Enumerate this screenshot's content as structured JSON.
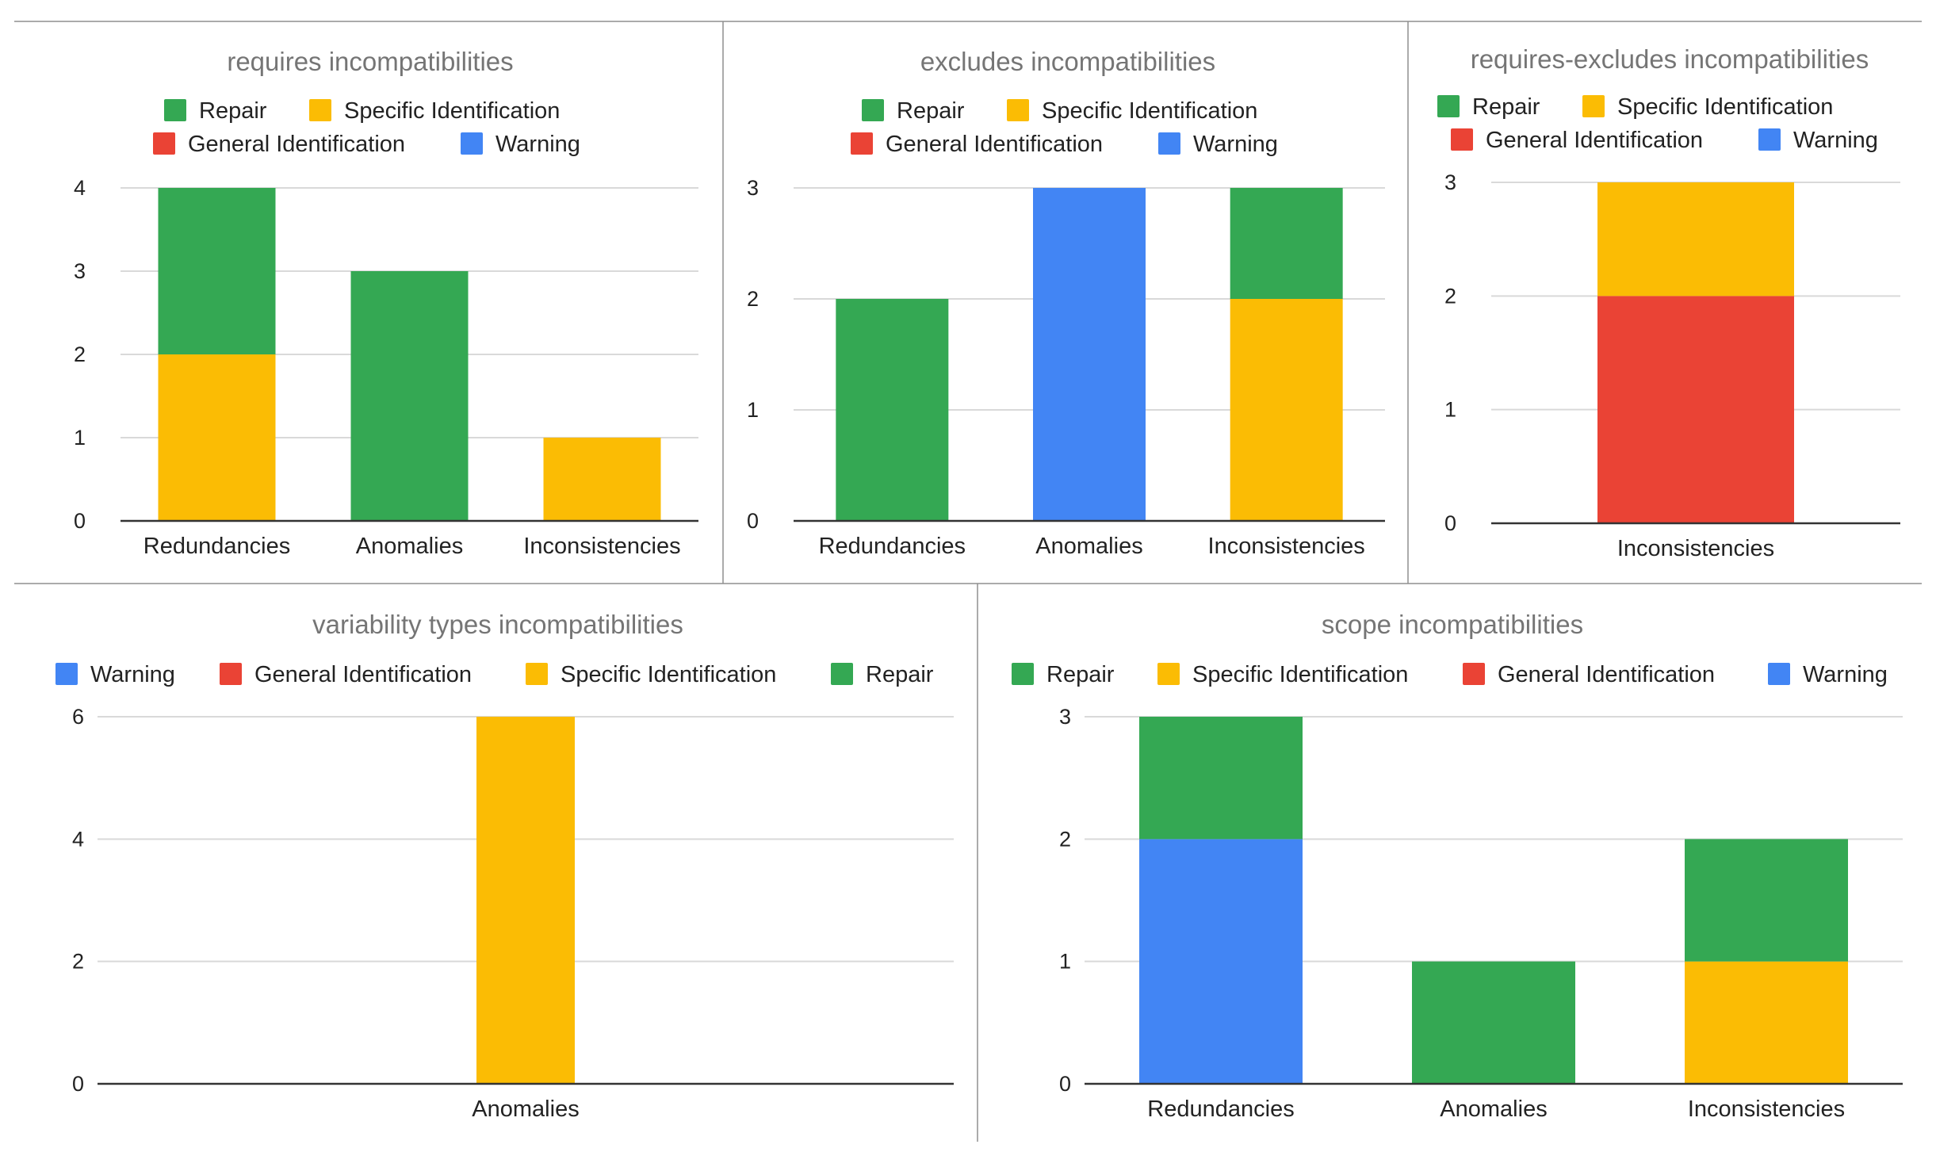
{
  "colors": {
    "Repair": "#34A853",
    "Specific Identification": "#FBBC04",
    "General Identification": "#EA4335",
    "Warning": "#4285F4"
  },
  "chart_data": [
    {
      "type": "bar",
      "stacked": true,
      "title": "requires incompatibilities",
      "legend": [
        "Repair",
        "Specific Identification",
        "General Identification",
        "Warning"
      ],
      "categories": [
        "Redundancies",
        "Anomalies",
        "Inconsistencies"
      ],
      "series": [
        {
          "name": "Specific Identification",
          "values": [
            2,
            0,
            1
          ]
        },
        {
          "name": "Repair",
          "values": [
            2,
            3,
            0
          ]
        },
        {
          "name": "General Identification",
          "values": [
            0,
            0,
            0
          ]
        },
        {
          "name": "Warning",
          "values": [
            0,
            0,
            0
          ]
        }
      ],
      "ylim": [
        0,
        4
      ],
      "yticks": [
        0,
        1,
        2,
        3,
        4
      ],
      "grid": true,
      "legend_position": "top"
    },
    {
      "type": "bar",
      "stacked": true,
      "title": "excludes incompatibilities",
      "legend": [
        "Repair",
        "Specific Identification",
        "General Identification",
        "Warning"
      ],
      "categories": [
        "Redundancies",
        "Anomalies",
        "Inconsistencies"
      ],
      "series": [
        {
          "name": "Specific Identification",
          "values": [
            0,
            0,
            2
          ]
        },
        {
          "name": "Repair",
          "values": [
            2,
            0,
            1
          ]
        },
        {
          "name": "General Identification",
          "values": [
            0,
            0,
            0
          ]
        },
        {
          "name": "Warning",
          "values": [
            0,
            3,
            0
          ]
        }
      ],
      "ylim": [
        0,
        3
      ],
      "yticks": [
        0,
        1,
        2,
        3
      ],
      "grid": true,
      "legend_position": "top"
    },
    {
      "type": "bar",
      "stacked": true,
      "title": "requires-excludes incompatibilities",
      "legend": [
        "Repair",
        "Specific Identification",
        "General Identification",
        "Warning"
      ],
      "categories": [
        "Inconsistencies"
      ],
      "series": [
        {
          "name": "General Identification",
          "values": [
            2
          ]
        },
        {
          "name": "Specific Identification",
          "values": [
            1
          ]
        },
        {
          "name": "Repair",
          "values": [
            0
          ]
        },
        {
          "name": "Warning",
          "values": [
            0
          ]
        }
      ],
      "ylim": [
        0,
        3
      ],
      "yticks": [
        0,
        1,
        2,
        3
      ],
      "grid": true,
      "legend_position": "top"
    },
    {
      "type": "bar",
      "stacked": true,
      "title": "variability types incompatibilities",
      "legend": [
        "Warning",
        "General Identification",
        "Specific Identification",
        "Repair"
      ],
      "categories": [
        "Anomalies"
      ],
      "series": [
        {
          "name": "Specific Identification",
          "values": [
            6
          ]
        },
        {
          "name": "Warning",
          "values": [
            0
          ]
        },
        {
          "name": "General Identification",
          "values": [
            0
          ]
        },
        {
          "name": "Repair",
          "values": [
            0
          ]
        }
      ],
      "ylim": [
        0,
        6
      ],
      "yticks": [
        0,
        2,
        4,
        6
      ],
      "grid": true,
      "legend_position": "top"
    },
    {
      "type": "bar",
      "stacked": true,
      "title": "scope incompatibilities",
      "legend": [
        "Repair",
        "Specific Identification",
        "General Identification",
        "Warning"
      ],
      "categories": [
        "Redundancies",
        "Anomalies",
        "Inconsistencies"
      ],
      "series": [
        {
          "name": "Warning",
          "values": [
            2,
            0,
            0
          ]
        },
        {
          "name": "Specific Identification",
          "values": [
            0,
            0,
            1
          ]
        },
        {
          "name": "Repair",
          "values": [
            1,
            1,
            1
          ]
        },
        {
          "name": "General Identification",
          "values": [
            0,
            0,
            0
          ]
        }
      ],
      "ylim": [
        0,
        3
      ],
      "yticks": [
        0,
        1,
        2,
        3
      ],
      "grid": true,
      "legend_position": "top"
    }
  ]
}
